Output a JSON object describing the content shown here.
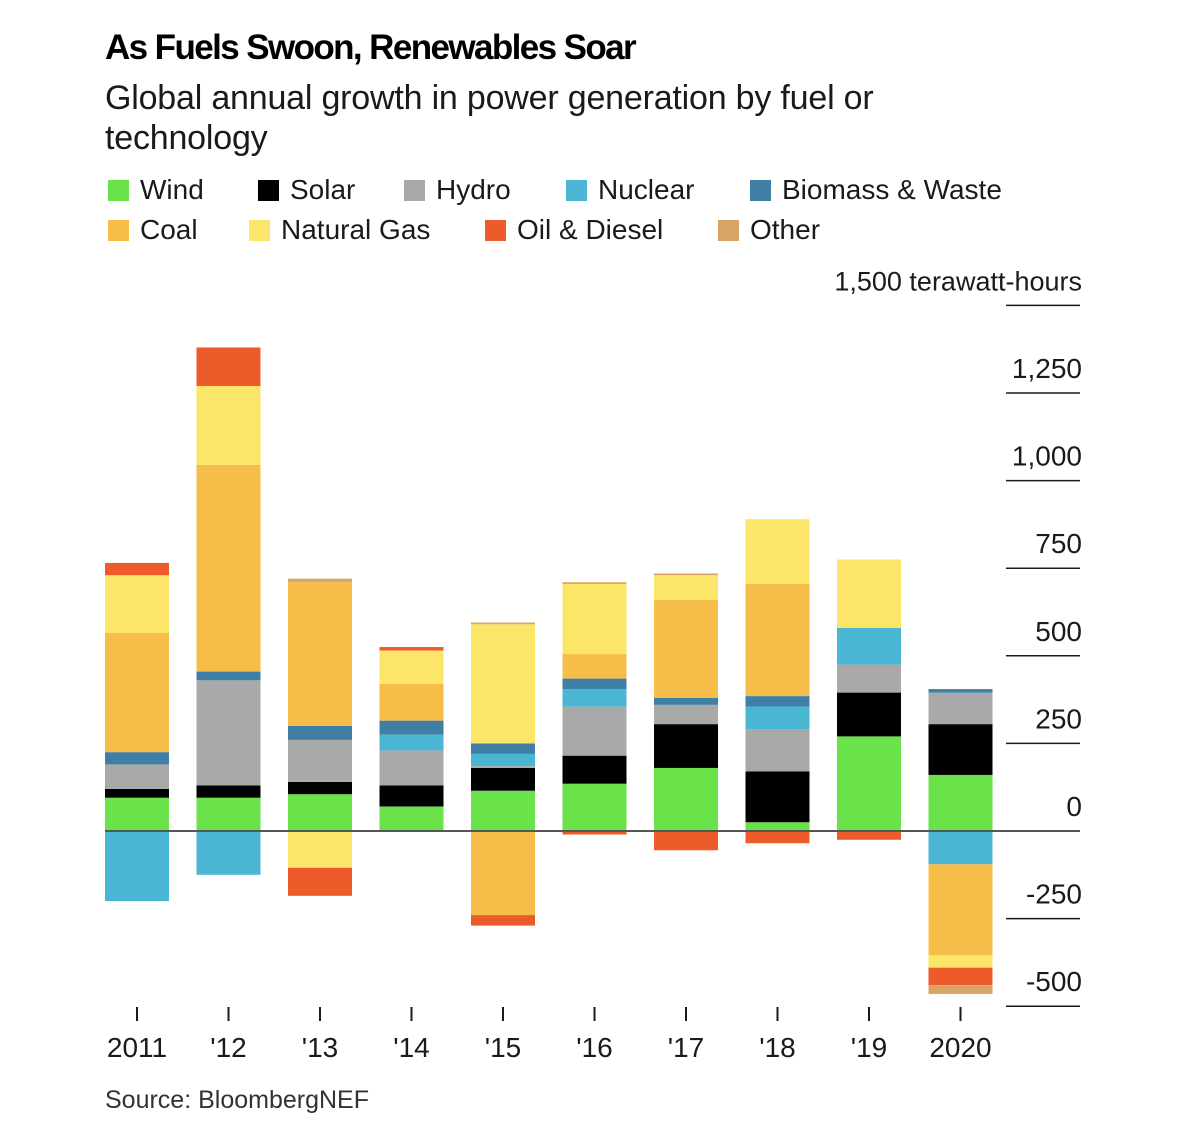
{
  "title": "As Fuels Swoon, Renewables Soar",
  "subtitle": "Global annual growth in power generation by fuel or technology",
  "source": "Source: BloombergNEF",
  "colors": {
    "Wind": "#6ae24a",
    "Solar": "#000000",
    "Hydro": "#a9a9a9",
    "Nuclear": "#4ab6d4",
    "Biomass & Waste": "#3f7fa6",
    "Coal": "#f6be48",
    "Natural Gas": "#fbe66a",
    "Oil & Diesel": "#ee5b2b",
    "Other": "#d9a566"
  },
  "chart_data": {
    "type": "bar",
    "stacked": true,
    "title": "As Fuels Swoon, Renewables Soar",
    "subtitle": "Global annual growth in power generation by fuel or technology",
    "ylabel": "1,500 terawatt-hours",
    "ylim": [
      -500,
      1500
    ],
    "ytick_values": [
      -500,
      -250,
      0,
      250,
      500,
      750,
      1000,
      1250,
      1500
    ],
    "ytick_labels": [
      "-500",
      "-250",
      "0",
      "250",
      "500",
      "750",
      "1,000",
      "1,250",
      "1,500 terawatt-hours"
    ],
    "axis_side": "right",
    "legend_position": "top",
    "categories": [
      "2011",
      "'12",
      "'13",
      "'14",
      "'15",
      "'16",
      "'17",
      "'18",
      "'19",
      "2020"
    ],
    "series": [
      {
        "name": "Wind",
        "values": [
          95,
          95,
          105,
          70,
          115,
          135,
          180,
          25,
          270,
          160
        ]
      },
      {
        "name": "Solar",
        "values": [
          25,
          35,
          35,
          60,
          65,
          80,
          125,
          145,
          125,
          145
        ]
      },
      {
        "name": "Hydro",
        "values": [
          70,
          300,
          120,
          100,
          5,
          140,
          55,
          120,
          80,
          90
        ]
      },
      {
        "name": "Nuclear",
        "values": [
          -200,
          -125,
          0,
          45,
          35,
          50,
          0,
          65,
          105,
          -95
        ]
      },
      {
        "name": "Biomass & Waste",
        "values": [
          35,
          25,
          40,
          40,
          30,
          30,
          20,
          30,
          0,
          10
        ]
      },
      {
        "name": "Coal",
        "values": [
          340,
          590,
          410,
          105,
          -240,
          70,
          280,
          320,
          0,
          -260
        ]
      },
      {
        "name": "Natural Gas",
        "values": [
          165,
          225,
          -105,
          95,
          340,
          200,
          70,
          185,
          195,
          -35
        ]
      },
      {
        "name": "Oil & Diesel",
        "values": [
          35,
          110,
          -80,
          10,
          -30,
          -10,
          -55,
          -35,
          -25,
          -50
        ]
      },
      {
        "name": "Other",
        "values": [
          0,
          0,
          10,
          0,
          5,
          5,
          5,
          0,
          0,
          -25
        ]
      }
    ]
  }
}
